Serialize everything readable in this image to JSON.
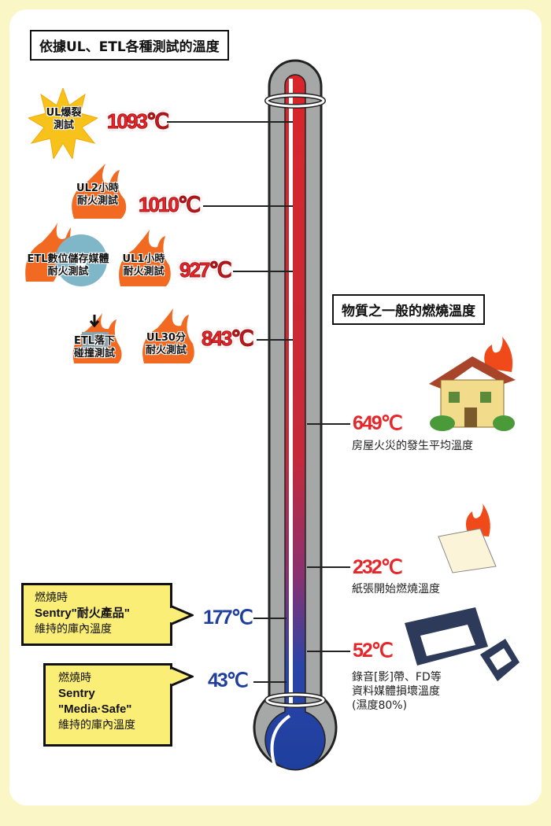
{
  "left_title": "依據UL、ETL各種測試的溫度",
  "right_title": "物質之一般的燃燒溫度",
  "tests": [
    {
      "label_line1": "UL爆裂",
      "label_line2": "測試",
      "temp": "1093℃",
      "icon": "explosion-star-icon"
    },
    {
      "label_line1": "UL2小時",
      "label_line2": "耐火測試",
      "temp": "1010℃",
      "icon": "flame-icon"
    },
    {
      "label_line1": "UL1小時",
      "label_line2": "耐火測試",
      "temp": "927℃",
      "icon": "flame-icon"
    },
    {
      "label_line1": "UL30分",
      "label_line2": "耐火測試",
      "temp": "843℃",
      "icon": "flame-icon"
    }
  ],
  "etl_tests": [
    {
      "label_line1": "ETL數位儲存媒體",
      "label_line2": "耐火測試",
      "icon": "flame-disc-icon"
    },
    {
      "label_line1": "ETL落下",
      "label_line2": "碰撞測試",
      "icon": "flame-drop-icon"
    }
  ],
  "materials": [
    {
      "temp": "649℃",
      "desc": [
        "房屋火災的發生平均溫度"
      ],
      "icon": "burning-house-icon"
    },
    {
      "temp": "232℃",
      "desc": [
        "紙張開始燃燒溫度"
      ],
      "icon": "burning-paper-icon"
    },
    {
      "temp": "52℃",
      "desc": [
        "錄音[影]帶、FD等",
        "資料媒體損壞溫度",
        "(濕度80%)"
      ],
      "icon": "videotape-floppy-icon"
    }
  ],
  "sentry": [
    {
      "temp": "177℃",
      "line1": "燃燒時",
      "line2": "Sentry\"耐火產品\"",
      "line3": "維持的庫內溫度"
    },
    {
      "temp": "43℃",
      "line1": "燃燒時",
      "line2": "Sentry",
      "line3": "\"Media·Safe\"",
      "line4": "維持的庫內溫度"
    }
  ],
  "colors": {
    "hot": "#e8262a",
    "cold": "#1e3f9e",
    "callout": "#fbee77",
    "background": "#fbf6c6"
  }
}
